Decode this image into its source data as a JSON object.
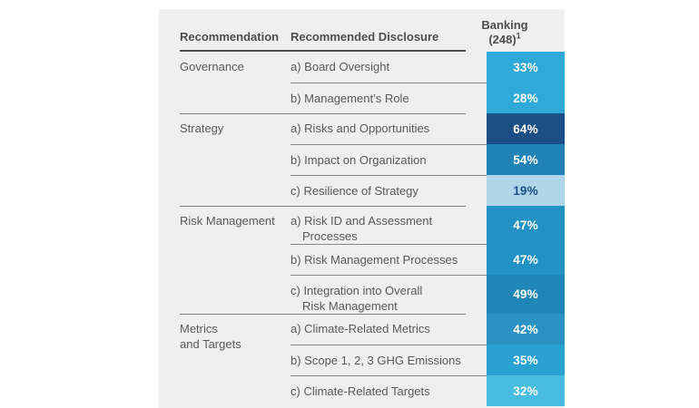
{
  "header": {
    "recommendation": "Recommendation",
    "disclosure": "Recommended Disclosure",
    "banking_line1": "Banking",
    "banking_count": "(248)",
    "footnote_marker": "1",
    "text_color": "#4d4d4f"
  },
  "panel": {
    "bg": "#efeff0"
  },
  "groups": [
    {
      "name_lines": [
        "Governance"
      ],
      "rows": [
        {
          "lines": [
            "a) Board Oversight"
          ],
          "value": "33%",
          "bg": "#2fa9d7",
          "fg": "#ffffff"
        },
        {
          "lines": [
            "b) Management’s Role"
          ],
          "value": "28%",
          "bg": "#2fa9d7",
          "fg": "#ffffff"
        }
      ]
    },
    {
      "name_lines": [
        "Strategy"
      ],
      "rows": [
        {
          "lines": [
            "a) Risks and Opportunities"
          ],
          "value": "64%",
          "bg": "#1d4f87",
          "fg": "#ffffff"
        },
        {
          "lines": [
            "b) Impact on Organization"
          ],
          "value": "54%",
          "bg": "#2182b5",
          "fg": "#ffffff"
        },
        {
          "lines": [
            "c) Resilience of Strategy"
          ],
          "value": "19%",
          "bg": "#aed5e8",
          "fg": "#1d4f87"
        }
      ]
    },
    {
      "name_lines": [
        "Risk Management"
      ],
      "rows": [
        {
          "lines": [
            "a) Risk ID and Assessment",
            "Processes"
          ],
          "value": "47%",
          "bg": "#2292c4",
          "fg": "#ffffff"
        },
        {
          "lines": [
            "b) Risk Management Processes"
          ],
          "value": "47%",
          "bg": "#2292c4",
          "fg": "#ffffff"
        },
        {
          "lines": [
            "c) Integration into Overall",
            "Risk Management"
          ],
          "value": "49%",
          "bg": "#1f86b8",
          "fg": "#ffffff"
        }
      ]
    },
    {
      "name_lines": [
        "Metrics",
        "and Targets"
      ],
      "rows": [
        {
          "lines": [
            "a) Climate-Related Metrics"
          ],
          "value": "42%",
          "bg": "#2a93c3",
          "fg": "#ffffff"
        },
        {
          "lines": [
            "b) Scope 1, 2, 3 GHG Emissions"
          ],
          "value": "35%",
          "bg": "#29a2d2",
          "fg": "#ffffff"
        },
        {
          "lines": [
            "c) Climate-Related Targets"
          ],
          "value": "32%",
          "bg": "#49bce2",
          "fg": "#ffffff"
        }
      ]
    }
  ],
  "chart_data": {
    "type": "table",
    "title": "Banking (248)",
    "columns": [
      "Recommendation",
      "Recommended Disclosure",
      "Banking (248)"
    ],
    "unit": "%",
    "footnote_marker": "1",
    "rows": [
      [
        "Governance",
        "a) Board Oversight",
        33
      ],
      [
        "Governance",
        "b) Management’s Role",
        28
      ],
      [
        "Strategy",
        "a) Risks and Opportunities",
        64
      ],
      [
        "Strategy",
        "b) Impact on Organization",
        54
      ],
      [
        "Strategy",
        "c) Resilience of Strategy",
        19
      ],
      [
        "Risk Management",
        "a) Risk ID and Assessment Processes",
        47
      ],
      [
        "Risk Management",
        "b) Risk Management Processes",
        47
      ],
      [
        "Risk Management",
        "c) Integration into Overall Risk Management",
        49
      ],
      [
        "Metrics and Targets",
        "a) Climate-Related Metrics",
        42
      ],
      [
        "Metrics and Targets",
        "b) Scope 1, 2, 3 GHG Emissions",
        35
      ],
      [
        "Metrics and Targets",
        "c) Climate-Related Targets",
        32
      ]
    ],
    "layout_hints": {
      "value_cells_shaded": true,
      "shade_scale": "darker blue = higher percentage",
      "light_cell_text_color": "#1d4f87",
      "dark_cell_text_color": "#ffffff"
    }
  }
}
